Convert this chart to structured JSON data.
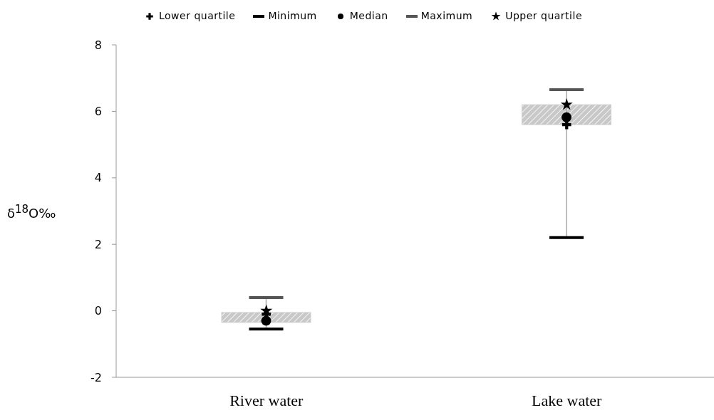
{
  "chart_data": {
    "type": "box",
    "categories": [
      "River water",
      "Lake water"
    ],
    "ylabel": "δ$^{18}$O‰",
    "ylim": [
      -2,
      8
    ],
    "yticks": [
      -2,
      0,
      2,
      4,
      6,
      8
    ],
    "legend": "top",
    "boxes": [
      {
        "low": -0.55,
        "q1": -0.35,
        "median": -0.3,
        "q3": -0.05,
        "high": 0.4
      },
      {
        "low": 2.2,
        "q1": 5.6,
        "median": 5.82,
        "q3": 6.2,
        "high": 6.65
      }
    ],
    "series": [
      {
        "name": "Lower quartile",
        "type": "scatter",
        "marker": "cross",
        "color": "#000000",
        "values": [
          -0.1,
          5.6
        ]
      },
      {
        "name": "Minimum",
        "type": "scatter",
        "color": "#000000",
        "values": [
          null,
          null
        ]
      },
      {
        "name": "Median",
        "type": "scatter",
        "marker": "circle",
        "color": "#000000",
        "values": [
          null,
          null
        ]
      },
      {
        "name": "Maximum",
        "type": "scatter",
        "color": "#555555",
        "values": [
          null,
          null
        ]
      },
      {
        "name": "Upper quartile",
        "type": "scatter",
        "marker": "star",
        "color": "#000000",
        "values": [
          0.0,
          6.2
        ]
      }
    ]
  }
}
